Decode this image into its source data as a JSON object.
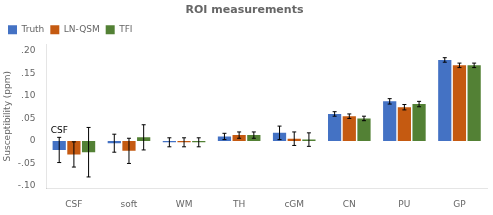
{
  "chart_data": {
    "type": "bar",
    "title": "ROI measurements",
    "ylabel": "Susceptibility (ppm)",
    "categories": [
      "CSF",
      "soft",
      "WM",
      "TH",
      "cGM",
      "CN",
      "PU",
      "GP"
    ],
    "series": [
      {
        "name": "Truth",
        "color": "#4472C4",
        "values": [
          -0.02,
          -0.005,
          -0.003,
          0.01,
          0.018,
          0.06,
          0.088,
          0.18
        ],
        "errors": [
          0.028,
          0.02,
          0.01,
          0.007,
          0.015,
          0.005,
          0.006,
          0.005
        ]
      },
      {
        "name": "LN-QSM",
        "color": "#C55A11",
        "values": [
          -0.03,
          -0.022,
          -0.003,
          0.013,
          0.005,
          0.055,
          0.075,
          0.168
        ],
        "errors": [
          0.028,
          0.028,
          0.01,
          0.007,
          0.015,
          0.005,
          0.006,
          0.005
        ]
      },
      {
        "name": "TFI",
        "color": "#538135",
        "values": [
          -0.025,
          0.008,
          -0.003,
          0.013,
          0.003,
          0.05,
          0.082,
          0.168
        ],
        "errors": [
          0.055,
          0.028,
          0.01,
          0.007,
          0.015,
          0.005,
          0.006,
          0.005
        ]
      }
    ],
    "ylim": [
      -0.105,
      0.215
    ],
    "yticks": [
      {
        "value": -0.1,
        "label": "-.10"
      },
      {
        "value": -0.05,
        "label": "-.05"
      },
      0,
      {
        "value": 0.05,
        "label": ".05"
      },
      {
        "value": 0.1,
        "label": ".10"
      },
      {
        "value": 0.15,
        "label": ".15"
      },
      {
        "value": 0.2,
        "label": ".20"
      }
    ],
    "grid": false,
    "legend": "upper left",
    "annotations": [
      {
        "text": "CSF",
        "x": "CSF",
        "y": 0.012
      }
    ]
  }
}
